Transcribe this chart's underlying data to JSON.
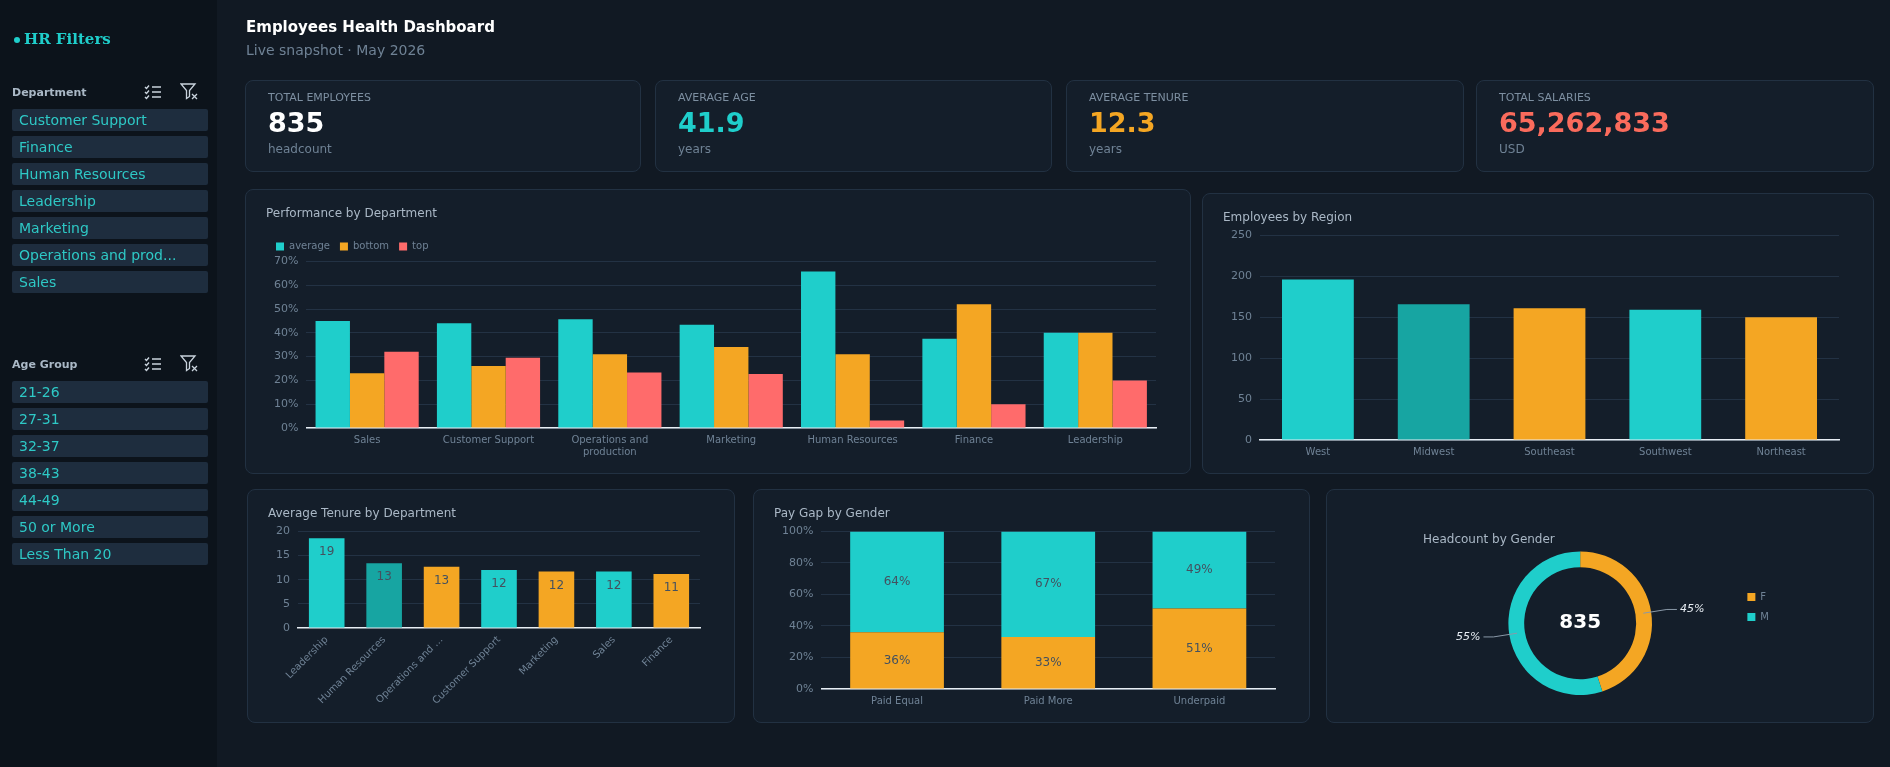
{
  "chart_data": [
    {
      "type": "other",
      "title": "HR Filters"
    },
    {
      "type": "other",
      "title": "Department",
      "annotations": [
        "Customer Support",
        "Finance",
        "Human Resources",
        "Leadership",
        "Marketing",
        "Operations and prod...",
        "Sales"
      ]
    },
    {
      "type": "other",
      "title": "Age Group",
      "annotations": [
        "21-26",
        "27-31",
        "32-37",
        "38-43",
        "44-49",
        "50 or More",
        "Less Than 20"
      ]
    },
    {
      "type": "other",
      "title": "Employees Health Dashboard",
      "subtitle": "Live snapshot · May 2026"
    },
    {
      "type": "other",
      "title": "TOTAL EMPLOYEES",
      "annotations": [
        "835",
        "headcount"
      ],
      "color": "#ffffff"
    },
    {
      "type": "other",
      "title": "AVERAGE AGE",
      "annotations": [
        "41.9",
        "years"
      ],
      "color": "#1fcecb"
    },
    {
      "type": "other",
      "title": "AVERAGE TENURE",
      "annotations": [
        "12.3",
        "years"
      ],
      "color": "#f4a623"
    },
    {
      "type": "other",
      "title": "TOTAL SALARIES",
      "annotations": [
        "65,262,833",
        "USD"
      ],
      "color": "#fa6b5c"
    },
    {
      "type": "bar",
      "title": "Performance by Department",
      "categories": [
        "Sales",
        "Customer Support",
        "Operations and production",
        "Marketing",
        "Human Resources",
        "Finance",
        "Leadership"
      ],
      "series": [
        {
          "name": "average",
          "color": "#1fcecb",
          "values": [
            45,
            44,
            45.7,
            43.4,
            65.8,
            37.5,
            40
          ]
        },
        {
          "name": "bottom",
          "color": "#f4a623",
          "values": [
            23,
            26,
            31,
            34,
            31,
            52,
            40
          ]
        },
        {
          "name": "top",
          "color": "#ff6b6b",
          "values": [
            32,
            29.5,
            23.3,
            22.7,
            3.2,
            10,
            20
          ]
        }
      ],
      "ylim": [
        0,
        70
      ],
      "yticks": [
        {
          "value": 0,
          "label": "0%"
        },
        {
          "value": 10,
          "label": "10%"
        },
        {
          "value": 20,
          "label": "20%"
        },
        {
          "value": 30,
          "label": "30%"
        },
        {
          "value": 40,
          "label": "40%"
        },
        {
          "value": 50,
          "label": "50%"
        },
        {
          "value": 60,
          "label": "60%"
        },
        {
          "value": 70,
          "label": "70%"
        }
      ],
      "grid": "y",
      "legend": "top left"
    },
    {
      "type": "bar",
      "title": "Employees by Region",
      "categories": [
        "West",
        "Midwest",
        "Southeast",
        "Southwest",
        "Northeast"
      ],
      "values": [
        196,
        166,
        161,
        159,
        150
      ],
      "colors": [
        "#1fcecb",
        "#17a5a2",
        "#f4a623",
        "#1fcecb",
        "#f4a623"
      ],
      "ylim": [
        0,
        250
      ],
      "yticks": [
        0,
        50,
        100,
        150,
        200,
        250
      ],
      "grid": "y"
    },
    {
      "type": "bar",
      "title": "Average Tenure by Department",
      "categories": [
        "Leadership",
        "Human Resources",
        "Operations and …",
        "Customer Support",
        "Marketing",
        "Sales",
        "Finance"
      ],
      "values": [
        18.6,
        13.4,
        12.7,
        12,
        11.7,
        11.7,
        11.2
      ],
      "value_labels": [
        "19",
        "13",
        "13",
        "12",
        "12",
        "12",
        "11"
      ],
      "colors": [
        "#1fcecb",
        "#17a5a2",
        "#f4a623",
        "#1fcecb",
        "#f4a623",
        "#1fcecb",
        "#f4a623"
      ],
      "ylim": [
        0,
        20
      ],
      "yticks": [
        0,
        5,
        10,
        15,
        20
      ],
      "grid": "y"
    },
    {
      "type": "bar",
      "title": "Pay Gap by Gender",
      "categories": [
        "Paid Equal",
        "Paid More",
        "Underpaid"
      ],
      "stacked": true,
      "series": [
        {
          "color": "#f4a623",
          "values": [
            36,
            33,
            51
          ],
          "value_labels": [
            "36%",
            "33%",
            "51%"
          ]
        },
        {
          "color": "#1fcecb",
          "values": [
            64,
            67,
            49
          ],
          "value_labels": [
            "64%",
            "67%",
            "49%"
          ]
        }
      ],
      "ylim": [
        0,
        100
      ],
      "yticks": [
        {
          "value": 0,
          "label": "0%"
        },
        {
          "value": 20,
          "label": "20%"
        },
        {
          "value": 40,
          "label": "40%"
        },
        {
          "value": 60,
          "label": "60%"
        },
        {
          "value": 80,
          "label": "80%"
        },
        {
          "value": 100,
          "label": "100%"
        }
      ],
      "grid": "y"
    },
    {
      "type": "donut",
      "title": "Headcount by Gender",
      "categories": [
        "F",
        "M"
      ],
      "values": [
        45,
        55
      ],
      "value_labels": [
        "45%",
        "55%"
      ],
      "colors": [
        "#f4a623",
        "#1fcecb"
      ],
      "legend": "right",
      "annotations": [
        "835"
      ]
    }
  ]
}
